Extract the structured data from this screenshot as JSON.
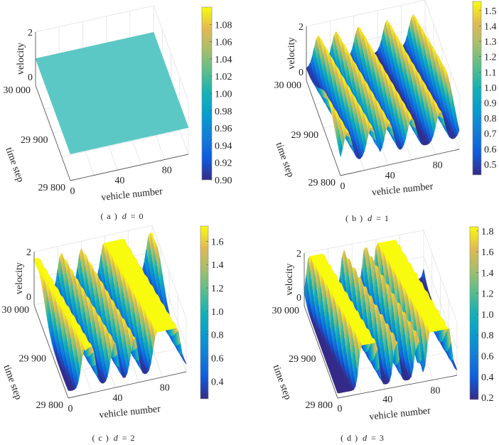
{
  "figure": {
    "colormap": "parula",
    "grid": true
  },
  "chart_data": [
    {
      "type": "surface",
      "caption": {
        "label": "( a )",
        "param": "d",
        "value": "= 0"
      },
      "xlabel": "vehicle number",
      "ylabel": "time step",
      "zlabel": "velocity",
      "xlim": [
        0,
        100
      ],
      "ylim": [
        29800,
        30000
      ],
      "zlim": [
        0,
        2
      ],
      "x_ticks": [
        "0",
        "40",
        "80"
      ],
      "y_ticks": [
        "29 800",
        "29 900",
        "30 000"
      ],
      "z_ticks": [
        "0",
        "2"
      ],
      "colorbar": {
        "range": [
          0.9,
          1.1
        ],
        "ticks": [
          "0.90",
          "0.92",
          "0.94",
          "0.96",
          "0.98",
          "1.00",
          "1.02",
          "1.04",
          "1.06",
          "1.08"
        ]
      },
      "surface": {
        "velocity_min": 1.0,
        "velocity_max": 1.0,
        "high_bands_vehicle_at_t30000": [],
        "band_drift_vehicles_over_range": 0
      }
    },
    {
      "type": "surface",
      "caption": {
        "label": "( b )",
        "param": "d",
        "value": "= 1"
      },
      "xlabel": "vehicle number",
      "ylabel": "time step",
      "zlabel": "velocity",
      "xlim": [
        0,
        100
      ],
      "ylim": [
        29800,
        30000
      ],
      "zlim": [
        0,
        2
      ],
      "x_ticks": [
        "0",
        "40",
        "80"
      ],
      "y_ticks": [
        "29 800",
        "29 900",
        "30 000"
      ],
      "z_ticks": [
        "0",
        "2"
      ],
      "colorbar": {
        "range": [
          0.43,
          1.56
        ],
        "ticks": [
          "0.5",
          "0.6",
          "0.7",
          "0.8",
          "0.9",
          "1.0",
          "1.1",
          "1.2",
          "1.3",
          "1.4",
          "1.5"
        ]
      },
      "surface": {
        "velocity_min": 0.43,
        "velocity_max": 1.56,
        "high_bands_vehicle_at_t30000": [
          [
            10,
            10
          ],
          [
            25,
            25
          ],
          [
            44,
            44
          ],
          [
            68,
            68
          ],
          [
            90,
            90
          ]
        ],
        "band_drift_vehicles_over_range": 16
      }
    },
    {
      "type": "surface",
      "caption": {
        "label": "( c )",
        "param": "d",
        "value": "= 2"
      },
      "xlabel": "vehicle number",
      "ylabel": "time step",
      "zlabel": "velocity",
      "xlim": [
        0,
        100
      ],
      "ylim": [
        29800,
        30000
      ],
      "zlim": [
        0,
        2
      ],
      "x_ticks": [
        "0",
        "40",
        "80"
      ],
      "y_ticks": [
        "29 800",
        "29 900",
        "30 000"
      ],
      "z_ticks": [
        "0",
        "2"
      ],
      "colorbar": {
        "range": [
          0.25,
          1.73
        ],
        "ticks": [
          "0.4",
          "0.6",
          "0.8",
          "1.0",
          "1.2",
          "1.4",
          "1.6"
        ]
      },
      "surface": {
        "velocity_min": 0.25,
        "velocity_max": 1.73,
        "high_bands_vehicle_at_t30000": [
          [
            0,
            4
          ],
          [
            23,
            23
          ],
          [
            40,
            40
          ],
          [
            59,
            76
          ],
          [
            98,
            98
          ]
        ],
        "band_drift_vehicles_over_range": 16
      }
    },
    {
      "type": "surface",
      "caption": {
        "label": "( d )",
        "param": "d",
        "value": "= 3"
      },
      "xlabel": "vehicle number",
      "ylabel": "time step",
      "zlabel": "velocity",
      "xlim": [
        0,
        100
      ],
      "ylim": [
        29800,
        30000
      ],
      "zlim": [
        0,
        2
      ],
      "x_ticks": [
        "0",
        "40",
        "80"
      ],
      "y_ticks": [
        "29 800",
        "29 900",
        "30 000"
      ],
      "z_ticks": [
        "0",
        "2"
      ],
      "colorbar": {
        "range": [
          0.18,
          1.84
        ],
        "ticks": [
          "0.2",
          "0.4",
          "0.6",
          "0.8",
          "1.0",
          "1.2",
          "1.4",
          "1.6",
          "1.8"
        ]
      },
      "surface": {
        "velocity_min": 0.18,
        "velocity_max": 1.84,
        "high_bands_vehicle_at_t30000": [
          [
            4,
            16
          ],
          [
            33,
            33
          ],
          [
            51,
            51
          ],
          [
            61,
            77
          ]
        ],
        "band_drift_vehicles_over_range": 16
      }
    }
  ]
}
